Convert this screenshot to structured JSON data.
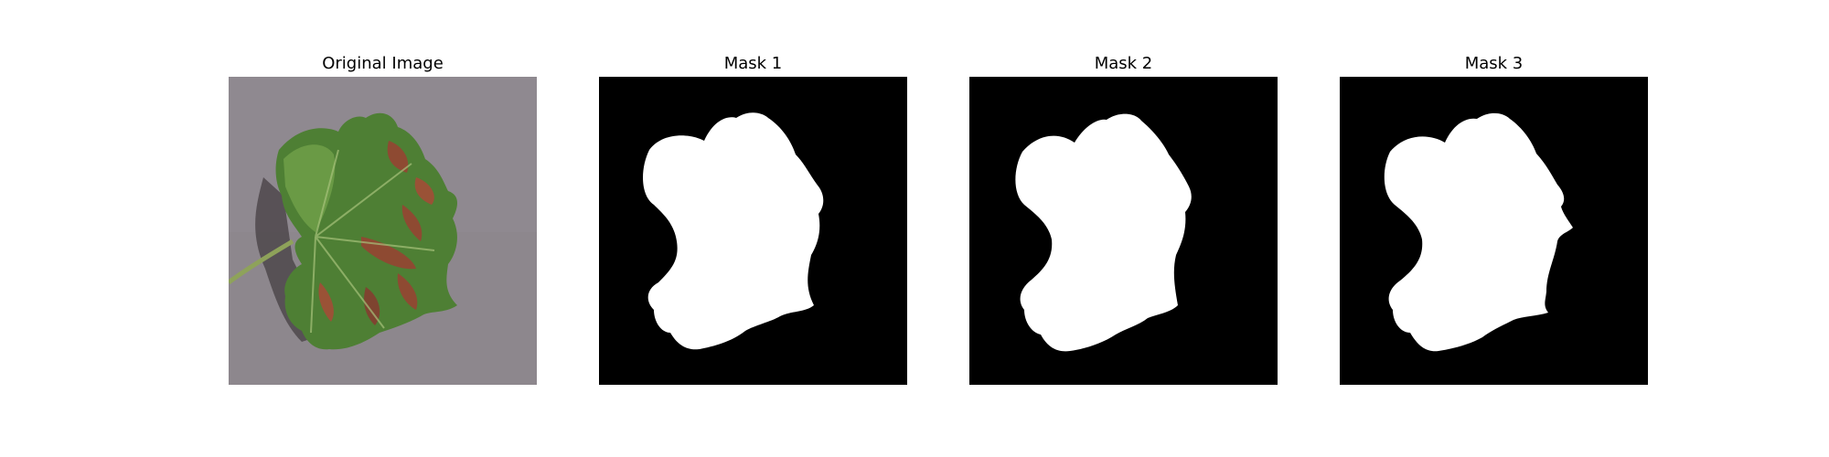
{
  "panels": [
    {
      "title": "Original Image",
      "content": "photo of a green grape leaf with brown diseased patches on a gray surface"
    },
    {
      "title": "Mask 1",
      "content": "binary segmentation mask, white leaf region on black background"
    },
    {
      "title": "Mask 2",
      "content": "binary segmentation mask, white leaf region on black background"
    },
    {
      "title": "Mask 3",
      "content": "binary segmentation mask, white leaf region on black background"
    }
  ],
  "colors": {
    "background": "#ffffff",
    "mask_background": "#000000",
    "mask_foreground": "#ffffff",
    "surface_gray": "#8d878d",
    "leaf_green": "#4e7f34",
    "lesion_brown": "#8e4a32"
  }
}
